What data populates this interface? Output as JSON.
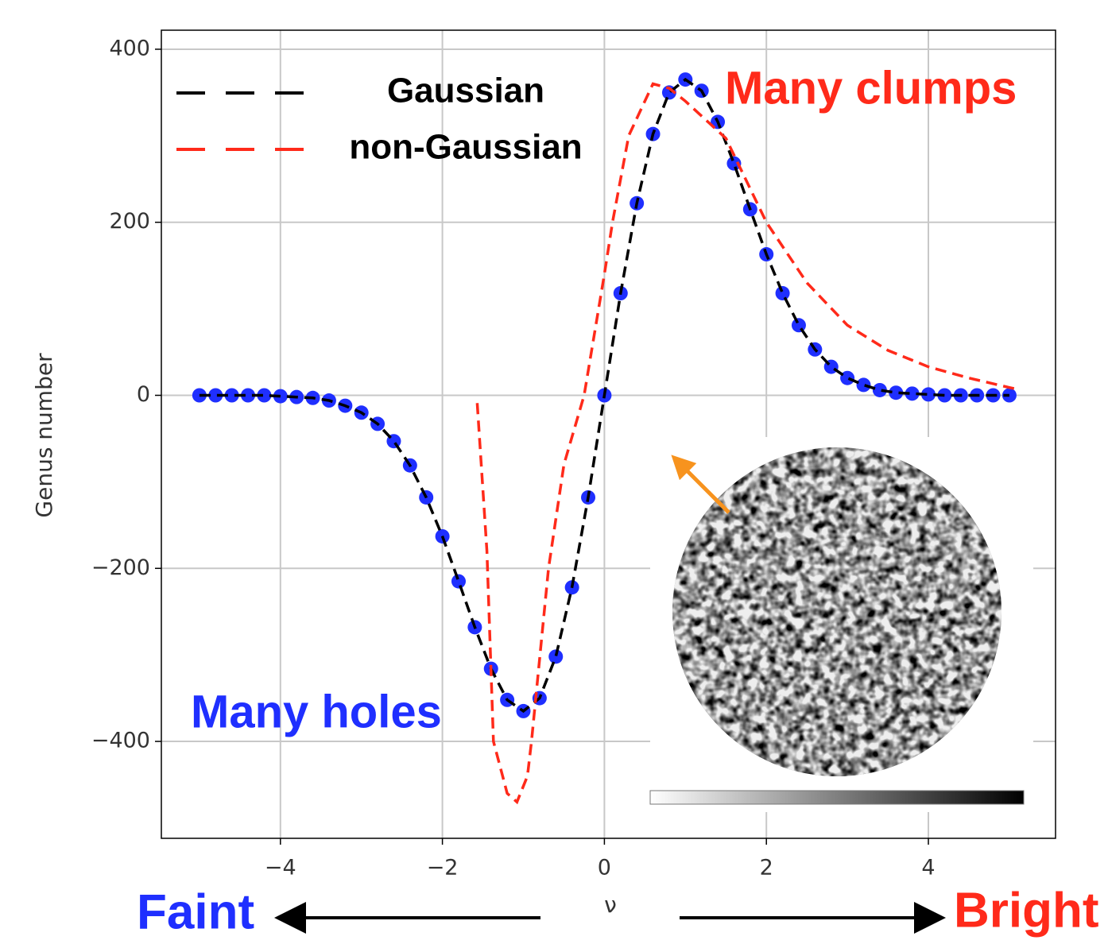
{
  "chart_data": {
    "type": "line",
    "y_label": "Genus number",
    "x_label": "ν",
    "xlim": [
      -5.47,
      5.57
    ],
    "ylim": [
      -512,
      422
    ],
    "xticks": [
      {
        "value": -4,
        "label": "−4"
      },
      {
        "value": -2,
        "label": "−2"
      },
      0,
      2,
      4
    ],
    "yticks": [
      {
        "value": -400,
        "label": "−400"
      },
      {
        "value": -200,
        "label": "−200"
      },
      0,
      200,
      400
    ],
    "grid": true,
    "series": [
      {
        "name": "Gaussian",
        "color": "#000000",
        "style": "dashed",
        "x": [
          -5,
          -4.8,
          -4.6,
          -4.4,
          -4.2,
          -4,
          -3.8,
          -3.6,
          -3.4,
          -3.2,
          -3,
          -2.8,
          -2.6,
          -2.4,
          -2.2,
          -2,
          -1.8,
          -1.6,
          -1.4,
          -1.2,
          -1,
          -0.8,
          -0.6,
          -0.4,
          -0.2,
          0,
          0.2,
          0.4,
          0.6,
          0.8,
          1,
          1.2,
          1.4,
          1.6,
          1.8,
          2,
          2.2,
          2.4,
          2.6,
          2.8,
          3,
          3.2,
          3.4,
          3.6,
          3.8,
          4,
          4.2,
          4.4,
          4.6,
          4.8,
          5
        ],
        "values": [
          0,
          0,
          0,
          0,
          0,
          -1,
          -2,
          -3,
          -6,
          -12,
          -20,
          -33,
          -53,
          -81,
          -118,
          -163,
          -215,
          -268,
          -316,
          -352,
          -365,
          -350,
          -302,
          -222,
          -118,
          0,
          118,
          222,
          302,
          350,
          365,
          352,
          316,
          268,
          215,
          163,
          118,
          81,
          53,
          33,
          20,
          12,
          6,
          3,
          2,
          1,
          0,
          0,
          0,
          0,
          0
        ]
      },
      {
        "name": "non-Gaussian",
        "color": "#ff2a1a",
        "style": "dashed",
        "x": [
          -1.57,
          -1.45,
          -1.37,
          -1.2,
          -1.08,
          -0.95,
          -0.9,
          -0.69,
          -0.5,
          -0.25,
          0,
          0.1,
          0.3,
          0.6,
          0.8,
          1,
          1.5,
          2,
          2.5,
          3,
          3.5,
          4,
          4.5,
          5,
          5.1
        ],
        "values": [
          -9,
          -180,
          -400,
          -460,
          -470,
          -440,
          -400,
          -200,
          -80,
          0,
          140,
          200,
          300,
          360,
          355,
          340,
          297,
          200,
          130,
          81,
          52,
          33,
          20,
          9,
          7
        ]
      },
      {
        "color": "#1f2fff",
        "style": "dots",
        "x": [
          -5,
          -4.8,
          -4.6,
          -4.4,
          -4.2,
          -4,
          -3.8,
          -3.6,
          -3.4,
          -3.2,
          -3,
          -2.8,
          -2.6,
          -2.4,
          -2.2,
          -2,
          -1.8,
          -1.6,
          -1.4,
          -1.2,
          -1,
          -0.8,
          -0.6,
          -0.4,
          -0.2,
          0,
          0.2,
          0.4,
          0.6,
          0.8,
          1,
          1.2,
          1.4,
          1.6,
          1.8,
          2,
          2.2,
          2.4,
          2.6,
          2.8,
          3,
          3.2,
          3.4,
          3.6,
          3.8,
          4,
          4.2,
          4.4,
          4.6,
          4.8,
          5
        ],
        "values": [
          0,
          0,
          0,
          0,
          0,
          -1,
          -2,
          -3,
          -6,
          -12,
          -20,
          -33,
          -53,
          -81,
          -118,
          -163,
          -215,
          -268,
          -316,
          -352,
          -365,
          -350,
          -302,
          -222,
          -118,
          0,
          118,
          222,
          302,
          350,
          365,
          352,
          316,
          268,
          215,
          163,
          118,
          81,
          53,
          33,
          20,
          12,
          6,
          3,
          2,
          1,
          0,
          0,
          0,
          0,
          0
        ]
      }
    ],
    "annotations": [
      {
        "text": "Many clumps",
        "color": "#ff2a1a"
      },
      {
        "text": "Many holes",
        "color": "#1f2fff"
      },
      {
        "text": "Faint",
        "color": "#1f2fff"
      },
      {
        "text": "Bright",
        "color": "#ff2a1a"
      }
    ]
  }
}
